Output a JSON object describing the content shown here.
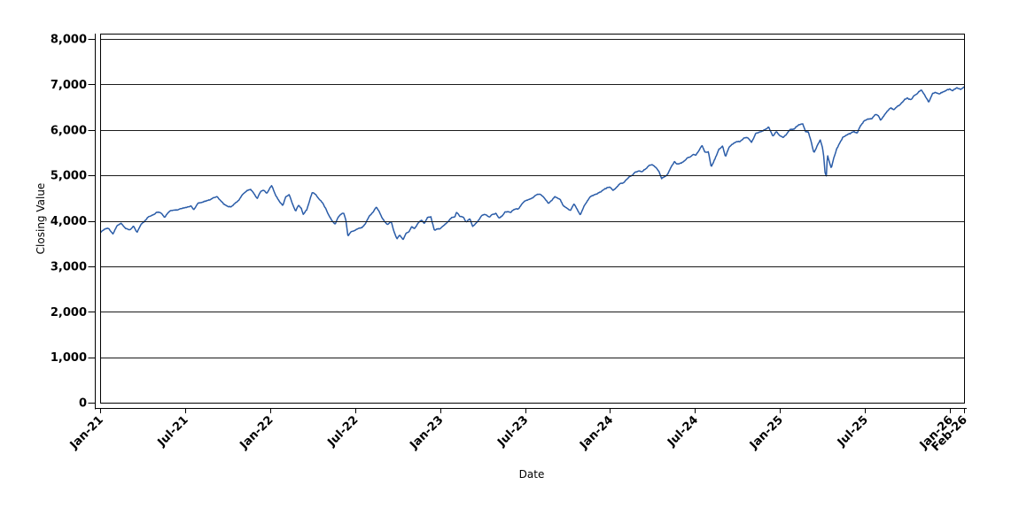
{
  "chart_data": {
    "type": "line",
    "title": "",
    "xlabel": "Date",
    "ylabel": "Closing Value",
    "legend": "none",
    "grid": "horizontal-only",
    "colors": {
      "line": "#2A5CA8",
      "grid": "#1a1a1a",
      "frame": "#000000",
      "background": "#ffffff",
      "text": "#000000"
    },
    "x_axis": {
      "unit": "months-since-Jan-2021",
      "range": [
        0,
        61
      ],
      "ticks": [
        {
          "t": 0,
          "label": "Jan-21"
        },
        {
          "t": 6,
          "label": "Jul-21"
        },
        {
          "t": 12,
          "label": "Jan-22"
        },
        {
          "t": 18,
          "label": "Jul-22"
        },
        {
          "t": 24,
          "label": "Jan-23"
        },
        {
          "t": 30,
          "label": "Jul-23"
        },
        {
          "t": 36,
          "label": "Jan-24"
        },
        {
          "t": 42,
          "label": "Jul-24"
        },
        {
          "t": 48,
          "label": "Jan-25"
        },
        {
          "t": 54,
          "label": "Jul-25"
        },
        {
          "t": 60,
          "label": "Jan-26"
        },
        {
          "t": 61,
          "label": "Feb-26"
        }
      ]
    },
    "y_axis": {
      "range": [
        0,
        8000
      ],
      "ticks": [
        {
          "v": 0,
          "label": "0"
        },
        {
          "v": 1000,
          "label": "1,000"
        },
        {
          "v": 2000,
          "label": "2,000"
        },
        {
          "v": 3000,
          "label": "3,000"
        },
        {
          "v": 4000,
          "label": "4,000"
        },
        {
          "v": 5000,
          "label": "5,000"
        },
        {
          "v": 6000,
          "label": "6,000"
        },
        {
          "v": 7000,
          "label": "7,000"
        },
        {
          "v": 8000,
          "label": "8,000"
        }
      ]
    },
    "series": [
      {
        "name": "Closing Value",
        "points": [
          [
            0,
            3756
          ],
          [
            0.3,
            3825
          ],
          [
            0.6,
            3841
          ],
          [
            0.9,
            3714
          ],
          [
            1.2,
            3886
          ],
          [
            1.5,
            3935
          ],
          [
            1.8,
            3829
          ],
          [
            2.1,
            3811
          ],
          [
            2.35,
            3901
          ],
          [
            2.6,
            3768
          ],
          [
            2.9,
            3943
          ],
          [
            3.1,
            3973
          ],
          [
            3.4,
            4080
          ],
          [
            3.7,
            4128
          ],
          [
            4,
            4181
          ],
          [
            4.3,
            4163
          ],
          [
            4.55,
            4058
          ],
          [
            4.8,
            4156
          ],
          [
            5,
            4204
          ],
          [
            5.3,
            4227
          ],
          [
            5.6,
            4247
          ],
          [
            5.9,
            4280
          ],
          [
            6.1,
            4297
          ],
          [
            6.4,
            4327
          ],
          [
            6.62,
            4258
          ],
          [
            6.9,
            4395
          ],
          [
            7.2,
            4423
          ],
          [
            7.5,
            4448
          ],
          [
            7.8,
            4480
          ],
          [
            8,
            4523
          ],
          [
            8.25,
            4536
          ],
          [
            8.5,
            4444
          ],
          [
            8.75,
            4357
          ],
          [
            9,
            4308
          ],
          [
            9.25,
            4300
          ],
          [
            9.5,
            4363
          ],
          [
            9.8,
            4471
          ],
          [
            10.1,
            4605
          ],
          [
            10.4,
            4680
          ],
          [
            10.65,
            4697
          ],
          [
            10.9,
            4595
          ],
          [
            11.1,
            4513
          ],
          [
            11.35,
            4687
          ],
          [
            11.55,
            4709
          ],
          [
            11.75,
            4621
          ],
          [
            12,
            4766
          ],
          [
            12.12,
            4797
          ],
          [
            12.4,
            4578
          ],
          [
            12.7,
            4410
          ],
          [
            12.9,
            4326
          ],
          [
            13.1,
            4516
          ],
          [
            13.35,
            4587
          ],
          [
            13.6,
            4380
          ],
          [
            13.8,
            4226
          ],
          [
            14,
            4374
          ],
          [
            14.2,
            4306
          ],
          [
            14.35,
            4171
          ],
          [
            14.6,
            4263
          ],
          [
            14.8,
            4456
          ],
          [
            14.97,
            4631
          ],
          [
            15.2,
            4583
          ],
          [
            15.5,
            4459
          ],
          [
            15.7,
            4393
          ],
          [
            15.9,
            4272
          ],
          [
            16.1,
            4132
          ],
          [
            16.35,
            3991
          ],
          [
            16.6,
            3901
          ],
          [
            16.8,
            4058
          ],
          [
            17,
            4132
          ],
          [
            17.2,
            4160
          ],
          [
            17.35,
            4018
          ],
          [
            17.5,
            3667
          ],
          [
            17.7,
            3760
          ],
          [
            17.9,
            3785
          ],
          [
            18.2,
            3831
          ],
          [
            18.5,
            3863
          ],
          [
            18.75,
            3960
          ],
          [
            19,
            4130
          ],
          [
            19.3,
            4210
          ],
          [
            19.5,
            4305
          ],
          [
            19.7,
            4199
          ],
          [
            19.9,
            4057
          ],
          [
            20.1,
            3955
          ],
          [
            20.3,
            3908
          ],
          [
            20.55,
            3979
          ],
          [
            20.75,
            3757
          ],
          [
            20.95,
            3586
          ],
          [
            21.15,
            3678
          ],
          [
            21.4,
            3577
          ],
          [
            21.6,
            3720
          ],
          [
            21.8,
            3753
          ],
          [
            22,
            3872
          ],
          [
            22.2,
            3828
          ],
          [
            22.45,
            3957
          ],
          [
            22.7,
            4027
          ],
          [
            22.9,
            3946
          ],
          [
            23.1,
            4080
          ],
          [
            23.35,
            4110
          ],
          [
            23.6,
            3818
          ],
          [
            23.8,
            3844
          ],
          [
            24,
            3840
          ],
          [
            24.3,
            3919
          ],
          [
            24.6,
            3999
          ],
          [
            24.85,
            4070
          ],
          [
            25.05,
            4077
          ],
          [
            25.15,
            4180
          ],
          [
            25.4,
            4090
          ],
          [
            25.65,
            4079
          ],
          [
            25.85,
            3970
          ],
          [
            26.1,
            4046
          ],
          [
            26.3,
            3856
          ],
          [
            26.5,
            3917
          ],
          [
            26.7,
            3971
          ],
          [
            26.95,
            4109
          ],
          [
            27.2,
            4138
          ],
          [
            27.5,
            4090
          ],
          [
            27.7,
            4134
          ],
          [
            27.95,
            4169
          ],
          [
            28.15,
            4061
          ],
          [
            28.4,
            4115
          ],
          [
            28.6,
            4193
          ],
          [
            29,
            4180
          ],
          [
            29.3,
            4267
          ],
          [
            29.55,
            4282
          ],
          [
            29.8,
            4410
          ],
          [
            30,
            4450
          ],
          [
            30.3,
            4472
          ],
          [
            30.55,
            4505
          ],
          [
            30.8,
            4567
          ],
          [
            31,
            4589
          ],
          [
            31.25,
            4518
          ],
          [
            31.5,
            4437
          ],
          [
            31.65,
            4370
          ],
          [
            31.9,
            4433
          ],
          [
            32.1,
            4508
          ],
          [
            32.3,
            4488
          ],
          [
            32.5,
            4451
          ],
          [
            32.7,
            4330
          ],
          [
            32.95,
            4288
          ],
          [
            33.2,
            4224
          ],
          [
            33.45,
            4358
          ],
          [
            33.65,
            4250
          ],
          [
            33.9,
            4117
          ],
          [
            34.15,
            4300
          ],
          [
            34.4,
            4415
          ],
          [
            34.6,
            4514
          ],
          [
            34.85,
            4550
          ],
          [
            35.1,
            4568
          ],
          [
            35.35,
            4622
          ],
          [
            35.6,
            4707
          ],
          [
            35.8,
            4754
          ],
          [
            36,
            4770
          ],
          [
            36.2,
            4689
          ],
          [
            36.45,
            4740
          ],
          [
            36.7,
            4840
          ],
          [
            36.95,
            4846
          ],
          [
            37.2,
            4920
          ],
          [
            37.45,
            4975
          ],
          [
            37.6,
            5000
          ],
          [
            37.8,
            5070
          ],
          [
            38,
            5096
          ],
          [
            38.25,
            5078
          ],
          [
            38.5,
            5150
          ],
          [
            38.75,
            5234
          ],
          [
            39,
            5254
          ],
          [
            39.2,
            5205
          ],
          [
            39.45,
            5123
          ],
          [
            39.65,
            4967
          ],
          [
            39.9,
            5010
          ],
          [
            40.05,
            5036
          ],
          [
            40.3,
            5180
          ],
          [
            40.55,
            5308
          ],
          [
            40.75,
            5267
          ],
          [
            41,
            5277
          ],
          [
            41.3,
            5354
          ],
          [
            41.6,
            5431
          ],
          [
            41.85,
            5483
          ],
          [
            42.05,
            5460
          ],
          [
            42.3,
            5572
          ],
          [
            42.5,
            5667
          ],
          [
            42.7,
            5505
          ],
          [
            42.95,
            5522
          ],
          [
            43.15,
            5186
          ],
          [
            43.4,
            5344
          ],
          [
            43.7,
            5570
          ],
          [
            43.95,
            5648
          ],
          [
            44.15,
            5408
          ],
          [
            44.4,
            5626
          ],
          [
            44.65,
            5702
          ],
          [
            44.95,
            5762
          ],
          [
            45.2,
            5751
          ],
          [
            45.5,
            5815
          ],
          [
            45.75,
            5797
          ],
          [
            46,
            5705
          ],
          [
            46.3,
            5930
          ],
          [
            46.6,
            5949
          ],
          [
            46.8,
            5987
          ],
          [
            47,
            6032
          ],
          [
            47.2,
            6090
          ],
          [
            47.5,
            5872
          ],
          [
            47.75,
            5975
          ],
          [
            48,
            5882
          ],
          [
            48.2,
            5827
          ],
          [
            48.5,
            5937
          ],
          [
            48.75,
            6049
          ],
          [
            49,
            6041
          ],
          [
            49.3,
            6115
          ],
          [
            49.6,
            6144
          ],
          [
            49.8,
            5983
          ],
          [
            50,
            5955
          ],
          [
            50.2,
            5770
          ],
          [
            50.4,
            5522
          ],
          [
            50.65,
            5675
          ],
          [
            50.85,
            5777
          ],
          [
            51,
            5612
          ],
          [
            51.1,
            5396
          ],
          [
            51.18,
            5074
          ],
          [
            51.28,
            4983
          ],
          [
            51.35,
            5457
          ],
          [
            51.5,
            5268
          ],
          [
            51.63,
            5158
          ],
          [
            51.8,
            5376
          ],
          [
            52,
            5569
          ],
          [
            52.2,
            5687
          ],
          [
            52.45,
            5844
          ],
          [
            52.7,
            5888
          ],
          [
            52.95,
            5912
          ],
          [
            53.2,
            5970
          ],
          [
            53.45,
            5940
          ],
          [
            53.7,
            6092
          ],
          [
            53.95,
            6205
          ],
          [
            54.2,
            6230
          ],
          [
            54.5,
            6259
          ],
          [
            54.75,
            6363
          ],
          [
            54.95,
            6339
          ],
          [
            55.1,
            6238
          ],
          [
            55.35,
            6340
          ],
          [
            55.6,
            6449
          ],
          [
            55.85,
            6502
          ],
          [
            56.05,
            6460
          ],
          [
            56.3,
            6532
          ],
          [
            56.55,
            6584
          ],
          [
            56.8,
            6661
          ],
          [
            57,
            6688
          ],
          [
            57.25,
            6654
          ],
          [
            57.5,
            6735
          ],
          [
            57.75,
            6792
          ],
          [
            58,
            6840
          ],
          [
            58.25,
            6728
          ],
          [
            58.5,
            6617
          ],
          [
            58.75,
            6812
          ],
          [
            59,
            6849
          ],
          [
            59.25,
            6829
          ],
          [
            59.5,
            6870
          ],
          [
            59.75,
            6901
          ],
          [
            60,
            6920
          ],
          [
            60.2,
            6880
          ],
          [
            60.5,
            6940
          ],
          [
            60.75,
            6905
          ],
          [
            61,
            6960
          ]
        ]
      }
    ],
    "render_hints": {
      "samples": 1280,
      "noise_amps": [
        22,
        20,
        10,
        7
      ],
      "noise_steps": [
        48,
        16,
        5,
        1
      ],
      "line_width": 1.5
    }
  }
}
